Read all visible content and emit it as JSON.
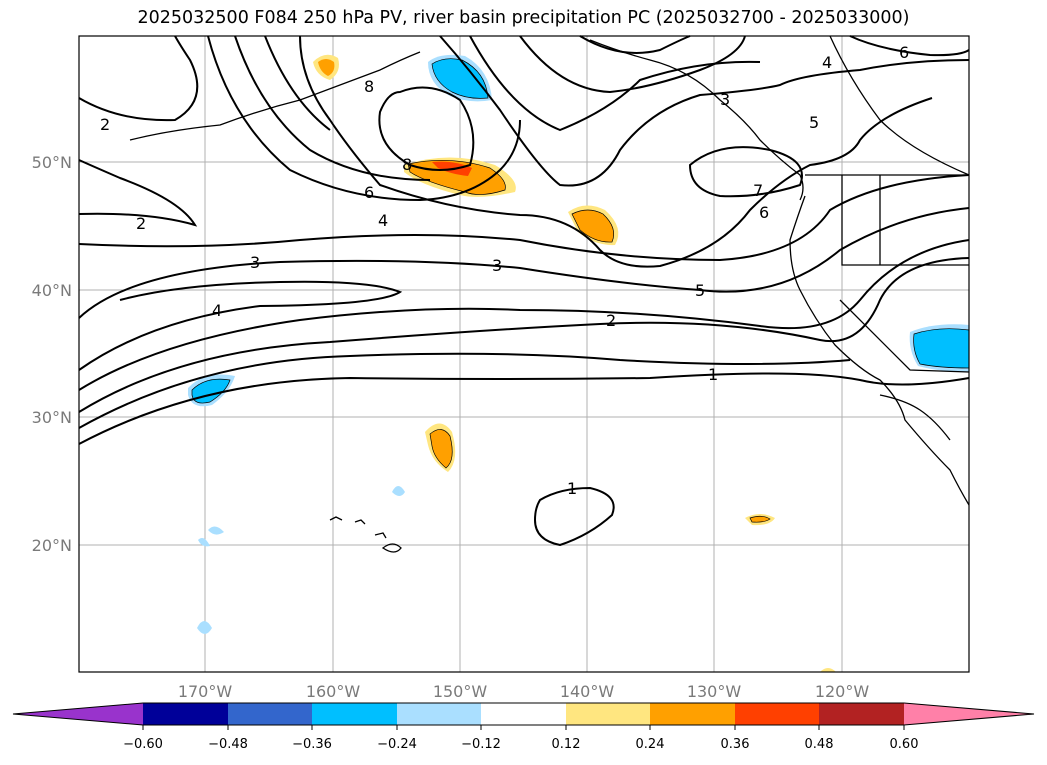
{
  "title": "2025032500 F084 250 hPa PV, river basin precipitation PC (2025032700 - 2025033000)",
  "map": {
    "lat_labels": [
      "50°N",
      "40°N",
      "30°N",
      "20°N"
    ],
    "lon_labels": [
      "170°W",
      "160°W",
      "150°W",
      "140°W",
      "130°W",
      "120°W"
    ],
    "contour_labels": [
      "2",
      "2",
      "3",
      "4",
      "6",
      "8",
      "8",
      "4",
      "3",
      "3",
      "2",
      "1",
      "1",
      "5",
      "5",
      "6",
      "7",
      "4",
      "6"
    ]
  },
  "colorbar": {
    "ticks": [
      "−0.60",
      "−0.48",
      "−0.36",
      "−0.24",
      "−0.12",
      "0.12",
      "0.24",
      "0.36",
      "0.48",
      "0.60"
    ],
    "colors": [
      "#9933cc",
      "#000099",
      "#3366cc",
      "#00bfff",
      "#aadfff",
      "#ffffff",
      "#ffe680",
      "#ffa000",
      "#ff4000",
      "#b22222",
      "#ff80a8"
    ]
  }
}
